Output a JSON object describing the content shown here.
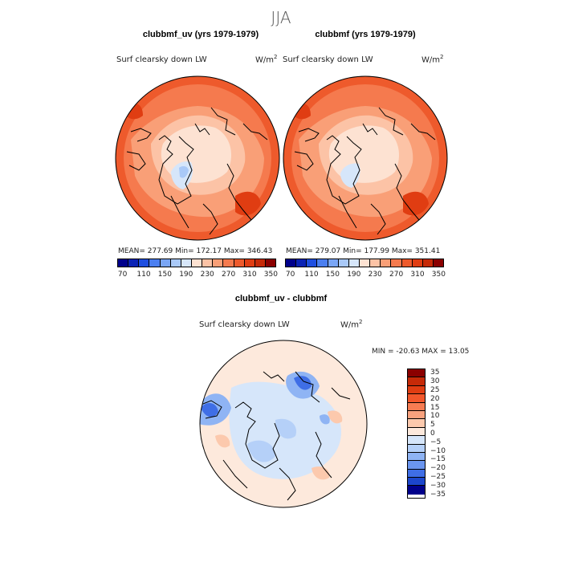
{
  "header": {
    "season": "JJA"
  },
  "panels": [
    {
      "title": "clubbmf_uv (yrs 1979-1979)",
      "variable": "Surf clearsky down LW",
      "units": "W/m",
      "units_sup": "2",
      "stats": "MEAN= 277.69   Min= 172.17   Max= 346.43"
    },
    {
      "title": "clubbmf (yrs 1979-1979)",
      "variable": "Surf clearsky down LW",
      "units": "W/m",
      "units_sup": "2",
      "stats": "MEAN= 279.07   Min= 177.99   Max= 351.41"
    }
  ],
  "diff_panel": {
    "title": "clubbmf_uv - clubbmf",
    "variable": "Surf clearsky down LW",
    "units": "W/m",
    "units_sup": "2",
    "stats": "MIN = -20.63 MAX =  13.05"
  },
  "chart_data": [
    {
      "type": "heatmap",
      "projection": "north-polar-stereographic",
      "title": "clubbmf_uv (yrs 1979-1979)",
      "variable": "Surf clearsky down LW",
      "units": "W/m2",
      "mean": 277.69,
      "min": 172.17,
      "max": 346.43,
      "colorbar_levels": [
        70,
        90,
        110,
        130,
        150,
        170,
        190,
        210,
        230,
        250,
        270,
        290,
        310,
        330,
        350
      ],
      "colorbar_tick_labels": [
        "70",
        "110",
        "150",
        "190",
        "230",
        "270",
        "310",
        "350"
      ]
    },
    {
      "type": "heatmap",
      "projection": "north-polar-stereographic",
      "title": "clubbmf (yrs 1979-1979)",
      "variable": "Surf clearsky down LW",
      "units": "W/m2",
      "mean": 279.07,
      "min": 177.99,
      "max": 351.41,
      "colorbar_levels": [
        70,
        90,
        110,
        130,
        150,
        170,
        190,
        210,
        230,
        250,
        270,
        290,
        310,
        330,
        350
      ],
      "colorbar_tick_labels": [
        "70",
        "110",
        "150",
        "190",
        "230",
        "270",
        "310",
        "350"
      ]
    },
    {
      "type": "heatmap",
      "projection": "north-polar-stereographic",
      "title": "clubbmf_uv - clubbmf",
      "variable": "Surf clearsky down LW",
      "units": "W/m2",
      "min": -20.63,
      "max": 13.05,
      "colorbar_levels": [
        35,
        30,
        25,
        20,
        15,
        10,
        5,
        0,
        -5,
        -10,
        -15,
        -20,
        -25,
        -30,
        -35
      ],
      "colorbar_tick_labels": [
        "35",
        "30",
        "25",
        "20",
        "15",
        "10",
        "5",
        "0",
        "−5",
        "−10",
        "−15",
        "−20",
        "−25",
        "−30",
        "−35"
      ]
    }
  ],
  "colors": {
    "abs_scale": [
      "#00008b",
      "#0b23b5",
      "#1f4fe0",
      "#4b7ff0",
      "#7aa6f5",
      "#a9c9f8",
      "#d6e6fa",
      "#fde2d2",
      "#fcc3a6",
      "#f99f77",
      "#f57a4e",
      "#ee5a2c",
      "#e03d12",
      "#c62a08",
      "#8b0000"
    ],
    "diff_scale": [
      "#8b0000",
      "#c62a08",
      "#e03d12",
      "#f2572b",
      "#f77c52",
      "#f9a27e",
      "#fcc9ad",
      "#fde9dc",
      "#d6e6fa",
      "#b5d0f8",
      "#8fb4f4",
      "#6a95ef",
      "#3f6ee6",
      "#1c46cc",
      "#00008b"
    ]
  }
}
